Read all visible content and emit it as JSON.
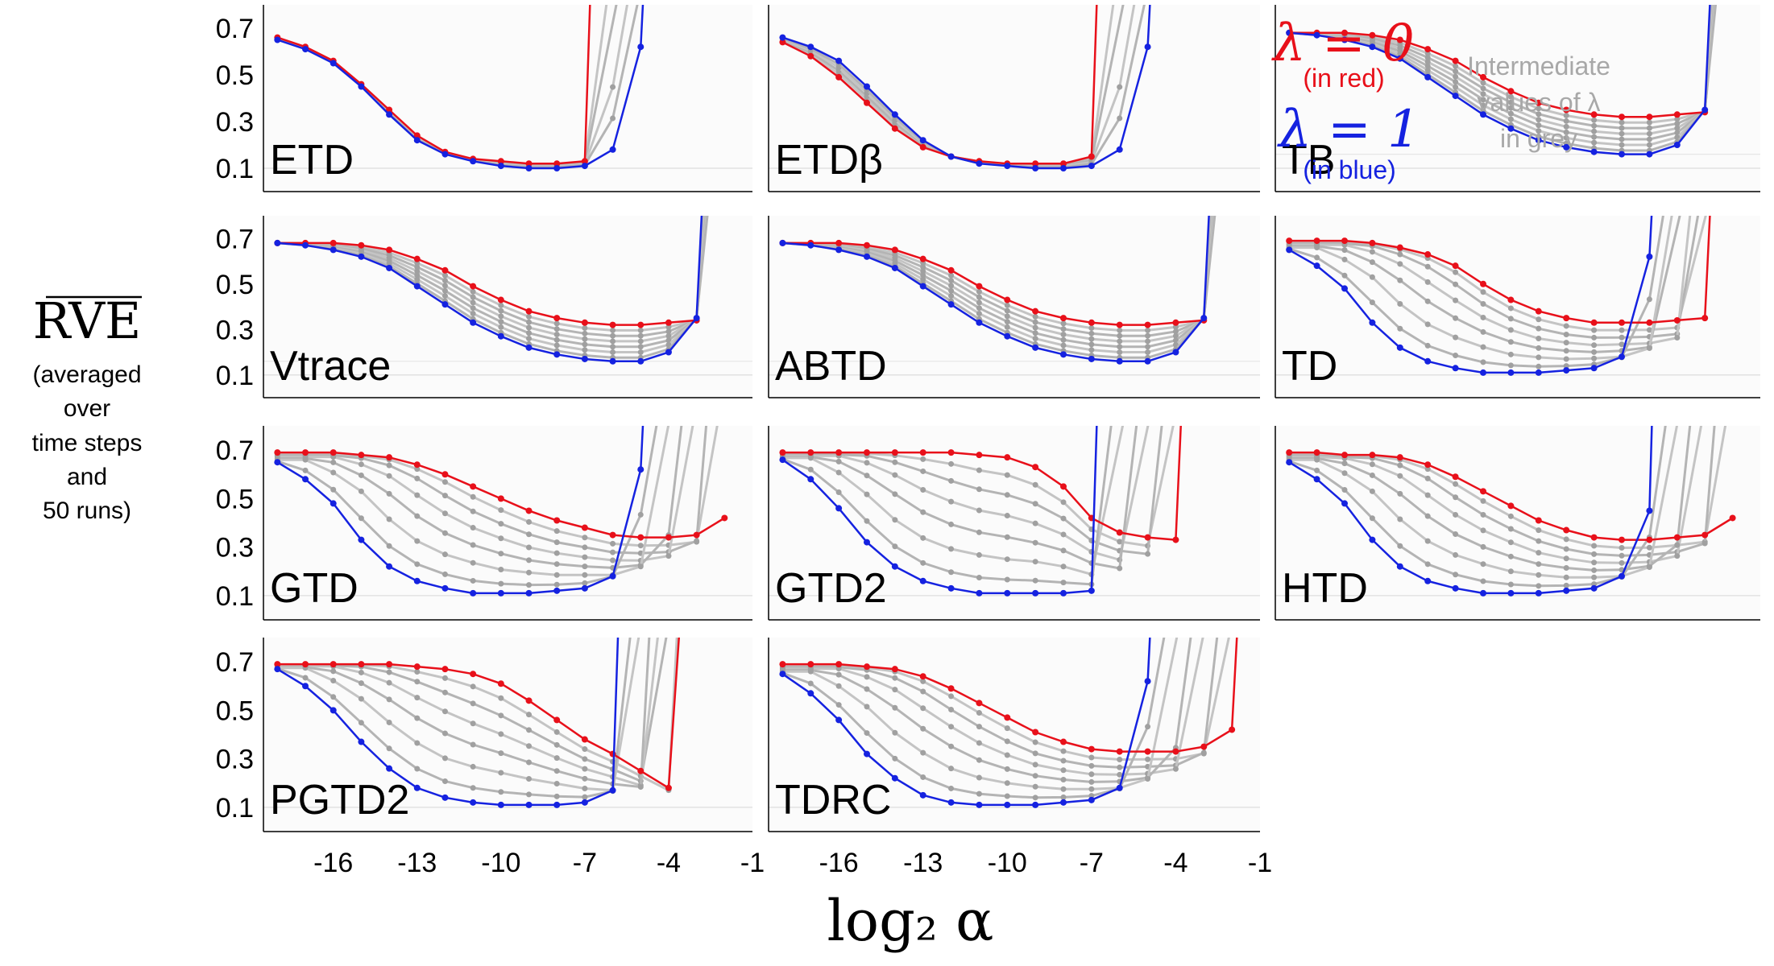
{
  "ylabel": {
    "main": "RVE",
    "lines": [
      "(averaged",
      "over",
      "time steps",
      "and",
      "50 runs)"
    ]
  },
  "xlabel": "log₂ α",
  "legend": {
    "lambda0": "λ = 0",
    "lambda0_note": "(in red)",
    "lambda1": "λ = 1",
    "lambda1_note": "(in blue)",
    "grey": [
      "Intermediate",
      "values of λ",
      "in grey"
    ]
  },
  "colors": {
    "red": "#e8101a",
    "blue": "#1522e0",
    "grey": "#b4b4b4",
    "dark_grey": "#6e6e6e"
  },
  "chart_data": [
    {
      "type": "line",
      "title": "ETD",
      "profile": "etd",
      "xlim": [
        -18.5,
        -1
      ],
      "ylim": [
        0,
        0.8
      ],
      "yticks": [
        0.1,
        0.3,
        0.5,
        0.7
      ],
      "xticks": [
        -16,
        -13,
        -10,
        -7,
        -4,
        -1
      ],
      "series": [
        {
          "name": "λ=0",
          "color": "red",
          "x": [
            -18,
            -17,
            -16,
            -15,
            -14,
            -13,
            -12,
            -11,
            -10,
            -9,
            -8,
            -7,
            -6.8
          ],
          "y": [
            0.66,
            0.62,
            0.56,
            0.46,
            0.35,
            0.24,
            0.17,
            0.14,
            0.13,
            0.12,
            0.12,
            0.13,
            0.85
          ]
        },
        {
          "name": "λ=1",
          "color": "blue",
          "x": [
            -18,
            -17,
            -16,
            -15,
            -14,
            -13,
            -12,
            -11,
            -10,
            -9,
            -8,
            -7,
            -6,
            -5,
            -4.9
          ],
          "y": [
            0.65,
            0.61,
            0.55,
            0.45,
            0.33,
            0.22,
            0.16,
            0.13,
            0.11,
            0.1,
            0.1,
            0.11,
            0.18,
            0.62,
            0.85
          ]
        }
      ]
    },
    {
      "type": "line",
      "title": "ETDβ",
      "profile": "etd",
      "xlim": [
        -18.5,
        -1
      ],
      "ylim": [
        0,
        0.8
      ],
      "yticks": [
        0.1,
        0.3,
        0.5,
        0.7
      ],
      "xticks": [
        -16,
        -13,
        -10,
        -7,
        -4,
        -1
      ],
      "series": [
        {
          "name": "λ=0",
          "color": "red",
          "x": [
            -18,
            -17,
            -16,
            -15,
            -14,
            -13,
            -12,
            -11,
            -10,
            -9,
            -8,
            -7,
            -6.8
          ],
          "y": [
            0.64,
            0.58,
            0.49,
            0.38,
            0.27,
            0.19,
            0.15,
            0.13,
            0.12,
            0.12,
            0.12,
            0.15,
            0.85
          ]
        },
        {
          "name": "λ=1",
          "color": "blue",
          "x": [
            -18,
            -17,
            -16,
            -15,
            -14,
            -13,
            -12,
            -11,
            -10,
            -9,
            -8,
            -7,
            -6,
            -5,
            -4.9
          ],
          "y": [
            0.66,
            0.62,
            0.56,
            0.45,
            0.33,
            0.22,
            0.15,
            0.12,
            0.11,
            0.1,
            0.1,
            0.11,
            0.18,
            0.62,
            0.85
          ]
        }
      ]
    },
    {
      "type": "line",
      "title": "TB",
      "profile": "tb",
      "xlim": [
        -18.5,
        -1
      ],
      "ylim": [
        0,
        0.8
      ],
      "yticks": [
        0.1,
        0.3,
        0.5,
        0.7
      ],
      "xticks": [
        -16,
        -13,
        -10,
        -7,
        -4,
        -1
      ],
      "series": [
        {
          "name": "λ=0",
          "color": "red",
          "x": [
            -18,
            -17,
            -16,
            -15,
            -14,
            -13,
            -12,
            -11,
            -10,
            -9,
            -8,
            -7,
            -6,
            -5,
            -4,
            -3
          ],
          "y": [
            0.68,
            0.68,
            0.68,
            0.67,
            0.65,
            0.61,
            0.56,
            0.49,
            0.43,
            0.38,
            0.35,
            0.33,
            0.32,
            0.32,
            0.33,
            0.34
          ]
        },
        {
          "name": "λ=1",
          "color": "blue",
          "x": [
            -18,
            -17,
            -16,
            -15,
            -14,
            -13,
            -12,
            -11,
            -10,
            -9,
            -8,
            -7,
            -6,
            -5,
            -4,
            -3,
            -2.8
          ],
          "y": [
            0.68,
            0.67,
            0.65,
            0.62,
            0.57,
            0.49,
            0.41,
            0.33,
            0.27,
            0.22,
            0.19,
            0.17,
            0.16,
            0.16,
            0.2,
            0.35,
            0.85
          ]
        }
      ]
    },
    {
      "type": "line",
      "title": "Vtrace",
      "profile": "tb",
      "xlim": [
        -18.5,
        -1
      ],
      "ylim": [
        0,
        0.8
      ],
      "yticks": [
        0.1,
        0.3,
        0.5,
        0.7
      ],
      "xticks": [
        -16,
        -13,
        -10,
        -7,
        -4,
        -1
      ],
      "series": [
        {
          "name": "λ=0",
          "color": "red",
          "x": [
            -18,
            -17,
            -16,
            -15,
            -14,
            -13,
            -12,
            -11,
            -10,
            -9,
            -8,
            -7,
            -6,
            -5,
            -4,
            -3
          ],
          "y": [
            0.68,
            0.68,
            0.68,
            0.67,
            0.65,
            0.61,
            0.56,
            0.49,
            0.43,
            0.38,
            0.35,
            0.33,
            0.32,
            0.32,
            0.33,
            0.34
          ]
        },
        {
          "name": "λ=1",
          "color": "blue",
          "x": [
            -18,
            -17,
            -16,
            -15,
            -14,
            -13,
            -12,
            -11,
            -10,
            -9,
            -8,
            -7,
            -6,
            -5,
            -4,
            -3,
            -2.8
          ],
          "y": [
            0.68,
            0.67,
            0.65,
            0.62,
            0.57,
            0.49,
            0.41,
            0.33,
            0.27,
            0.22,
            0.19,
            0.17,
            0.16,
            0.16,
            0.2,
            0.35,
            0.85
          ]
        }
      ]
    },
    {
      "type": "line",
      "title": "ABTD",
      "profile": "tb",
      "xlim": [
        -18.5,
        -1
      ],
      "ylim": [
        0,
        0.8
      ],
      "yticks": [
        0.1,
        0.3,
        0.5,
        0.7
      ],
      "xticks": [
        -16,
        -13,
        -10,
        -7,
        -4,
        -1
      ],
      "series": [
        {
          "name": "λ=0",
          "color": "red",
          "x": [
            -18,
            -17,
            -16,
            -15,
            -14,
            -13,
            -12,
            -11,
            -10,
            -9,
            -8,
            -7,
            -6,
            -5,
            -4,
            -3
          ],
          "y": [
            0.68,
            0.68,
            0.68,
            0.67,
            0.65,
            0.61,
            0.56,
            0.49,
            0.43,
            0.38,
            0.35,
            0.33,
            0.32,
            0.32,
            0.33,
            0.34
          ]
        },
        {
          "name": "λ=1",
          "color": "blue",
          "x": [
            -18,
            -17,
            -16,
            -15,
            -14,
            -13,
            -12,
            -11,
            -10,
            -9,
            -8,
            -7,
            -6,
            -5,
            -4,
            -3,
            -2.8
          ],
          "y": [
            0.68,
            0.67,
            0.65,
            0.62,
            0.57,
            0.49,
            0.41,
            0.33,
            0.27,
            0.22,
            0.19,
            0.17,
            0.16,
            0.16,
            0.2,
            0.35,
            0.85
          ]
        }
      ]
    },
    {
      "type": "line",
      "title": "TD",
      "profile": "td",
      "xlim": [
        -18.5,
        -1
      ],
      "ylim": [
        0,
        0.8
      ],
      "yticks": [
        0.1,
        0.3,
        0.5,
        0.7
      ],
      "xticks": [
        -16,
        -13,
        -10,
        -7,
        -4,
        -1
      ],
      "series": [
        {
          "name": "λ=0",
          "color": "red",
          "x": [
            -18,
            -17,
            -16,
            -15,
            -14,
            -13,
            -12,
            -11,
            -10,
            -9,
            -8,
            -7,
            -6,
            -5,
            -4,
            -3,
            -2.8
          ],
          "y": [
            0.69,
            0.69,
            0.69,
            0.68,
            0.66,
            0.63,
            0.58,
            0.5,
            0.43,
            0.38,
            0.35,
            0.33,
            0.33,
            0.33,
            0.34,
            0.35,
            0.85
          ]
        },
        {
          "name": "λ=1",
          "color": "blue",
          "x": [
            -18,
            -17,
            -16,
            -15,
            -14,
            -13,
            -12,
            -11,
            -10,
            -9,
            -8,
            -7,
            -6,
            -5,
            -4.9
          ],
          "y": [
            0.65,
            0.58,
            0.48,
            0.33,
            0.22,
            0.16,
            0.13,
            0.11,
            0.11,
            0.11,
            0.12,
            0.13,
            0.18,
            0.62,
            0.85
          ]
        }
      ]
    },
    {
      "type": "line",
      "title": "GTD",
      "profile": "td",
      "xlim": [
        -18.5,
        -1
      ],
      "ylim": [
        0,
        0.8
      ],
      "yticks": [
        0.1,
        0.3,
        0.5,
        0.7
      ],
      "xticks": [
        -16,
        -13,
        -10,
        -7,
        -4,
        -1
      ],
      "series": [
        {
          "name": "λ=0",
          "color": "red",
          "x": [
            -18,
            -17,
            -16,
            -15,
            -14,
            -13,
            -12,
            -11,
            -10,
            -9,
            -8,
            -7,
            -6,
            -5,
            -4,
            -3,
            -2
          ],
          "y": [
            0.69,
            0.69,
            0.69,
            0.68,
            0.67,
            0.64,
            0.6,
            0.55,
            0.5,
            0.45,
            0.41,
            0.38,
            0.35,
            0.34,
            0.34,
            0.35,
            0.42
          ]
        },
        {
          "name": "λ=1",
          "color": "blue",
          "x": [
            -18,
            -17,
            -16,
            -15,
            -14,
            -13,
            -12,
            -11,
            -10,
            -9,
            -8,
            -7,
            -6,
            -5,
            -4.9
          ],
          "y": [
            0.65,
            0.58,
            0.48,
            0.33,
            0.22,
            0.16,
            0.13,
            0.11,
            0.11,
            0.11,
            0.12,
            0.13,
            0.18,
            0.62,
            0.85
          ]
        }
      ]
    },
    {
      "type": "line",
      "title": "GTD2",
      "profile": "td",
      "xlim": [
        -18.5,
        -1
      ],
      "ylim": [
        0,
        0.8
      ],
      "yticks": [
        0.1,
        0.3,
        0.5,
        0.7
      ],
      "xticks": [
        -16,
        -13,
        -10,
        -7,
        -4,
        -1
      ],
      "series": [
        {
          "name": "λ=0",
          "color": "red",
          "x": [
            -18,
            -17,
            -16,
            -15,
            -14,
            -13,
            -12,
            -11,
            -10,
            -9,
            -8,
            -7,
            -6,
            -5,
            -4,
            -3.8
          ],
          "y": [
            0.69,
            0.69,
            0.69,
            0.69,
            0.69,
            0.69,
            0.69,
            0.68,
            0.67,
            0.63,
            0.55,
            0.42,
            0.36,
            0.34,
            0.33,
            0.85
          ]
        },
        {
          "name": "λ=1",
          "color": "blue",
          "x": [
            -18,
            -17,
            -16,
            -15,
            -14,
            -13,
            -12,
            -11,
            -10,
            -9,
            -8,
            -7,
            -6.8
          ],
          "y": [
            0.66,
            0.58,
            0.46,
            0.32,
            0.22,
            0.16,
            0.13,
            0.11,
            0.11,
            0.11,
            0.11,
            0.12,
            0.85
          ]
        }
      ]
    },
    {
      "type": "line",
      "title": "HTD",
      "profile": "td",
      "xlim": [
        -18.5,
        -1
      ],
      "ylim": [
        0,
        0.8
      ],
      "yticks": [
        0.1,
        0.3,
        0.5,
        0.7
      ],
      "xticks": [
        -16,
        -13,
        -10,
        -7,
        -4,
        -1
      ],
      "series": [
        {
          "name": "λ=0",
          "color": "red",
          "x": [
            -18,
            -17,
            -16,
            -15,
            -14,
            -13,
            -12,
            -11,
            -10,
            -9,
            -8,
            -7,
            -6,
            -5,
            -4,
            -3,
            -2
          ],
          "y": [
            0.69,
            0.69,
            0.68,
            0.68,
            0.67,
            0.64,
            0.59,
            0.53,
            0.47,
            0.41,
            0.37,
            0.34,
            0.33,
            0.33,
            0.34,
            0.35,
            0.42
          ]
        },
        {
          "name": "λ=1",
          "color": "blue",
          "x": [
            -18,
            -17,
            -16,
            -15,
            -14,
            -13,
            -12,
            -11,
            -10,
            -9,
            -8,
            -7,
            -6,
            -5,
            -4.9
          ],
          "y": [
            0.65,
            0.58,
            0.48,
            0.33,
            0.22,
            0.16,
            0.13,
            0.11,
            0.11,
            0.11,
            0.12,
            0.13,
            0.18,
            0.45,
            0.85
          ]
        }
      ]
    },
    {
      "type": "line",
      "title": "PGTD2",
      "profile": "td",
      "xlim": [
        -18.5,
        -1
      ],
      "ylim": [
        0,
        0.8
      ],
      "yticks": [
        0.1,
        0.3,
        0.5,
        0.7
      ],
      "xticks": [
        -16,
        -13,
        -10,
        -7,
        -4,
        -1
      ],
      "series": [
        {
          "name": "λ=0",
          "color": "red",
          "x": [
            -18,
            -17,
            -16,
            -15,
            -14,
            -13,
            -12,
            -11,
            -10,
            -9,
            -8,
            -7,
            -6,
            -5,
            -4,
            -3.6
          ],
          "y": [
            0.69,
            0.69,
            0.69,
            0.69,
            0.69,
            0.68,
            0.67,
            0.65,
            0.61,
            0.54,
            0.46,
            0.38,
            0.32,
            0.25,
            0.18,
            0.85
          ]
        },
        {
          "name": "λ=1",
          "color": "blue",
          "x": [
            -18,
            -17,
            -16,
            -15,
            -14,
            -13,
            -12,
            -11,
            -10,
            -9,
            -8,
            -7,
            -6,
            -5.8
          ],
          "y": [
            0.67,
            0.6,
            0.5,
            0.37,
            0.26,
            0.18,
            0.14,
            0.12,
            0.11,
            0.11,
            0.11,
            0.12,
            0.17,
            0.85
          ]
        }
      ]
    },
    {
      "type": "line",
      "title": "TDRC",
      "profile": "td",
      "xlim": [
        -18.5,
        -1
      ],
      "ylim": [
        0,
        0.8
      ],
      "yticks": [
        0.1,
        0.3,
        0.5,
        0.7
      ],
      "xticks": [
        -16,
        -13,
        -10,
        -7,
        -4,
        -1
      ],
      "series": [
        {
          "name": "λ=0",
          "color": "red",
          "x": [
            -18,
            -17,
            -16,
            -15,
            -14,
            -13,
            -12,
            -11,
            -10,
            -9,
            -8,
            -7,
            -6,
            -5,
            -4,
            -3,
            -2,
            -1.8
          ],
          "y": [
            0.69,
            0.69,
            0.69,
            0.68,
            0.67,
            0.64,
            0.59,
            0.53,
            0.47,
            0.41,
            0.37,
            0.34,
            0.33,
            0.33,
            0.33,
            0.35,
            0.42,
            0.85
          ]
        },
        {
          "name": "λ=1",
          "color": "blue",
          "x": [
            -18,
            -17,
            -16,
            -15,
            -14,
            -13,
            -12,
            -11,
            -10,
            -9,
            -8,
            -7,
            -6,
            -5,
            -4.9
          ],
          "y": [
            0.65,
            0.57,
            0.46,
            0.32,
            0.22,
            0.15,
            0.12,
            0.11,
            0.11,
            0.11,
            0.12,
            0.13,
            0.18,
            0.62,
            0.85
          ]
        }
      ]
    }
  ]
}
